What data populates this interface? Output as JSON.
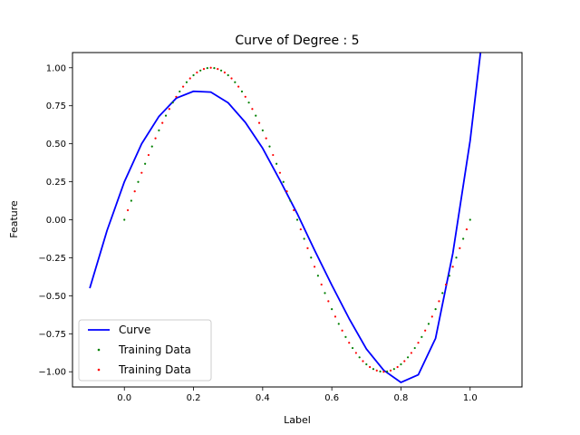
{
  "chart_data": {
    "type": "line",
    "title": "Curve of Degree : 5",
    "xlabel": "Label",
    "ylabel": "Feature",
    "xlim": [
      -0.15,
      1.15
    ],
    "ylim": [
      -1.1,
      1.1
    ],
    "xticks": [
      0.0,
      0.2,
      0.4,
      0.6,
      0.8,
      1.0
    ],
    "xtick_labels": [
      "0.0",
      "0.2",
      "0.4",
      "0.6",
      "0.8",
      "1.0"
    ],
    "yticks": [
      1.0,
      0.75,
      0.5,
      0.25,
      0.0,
      -0.25,
      -0.5,
      -0.75,
      -1.0
    ],
    "ytick_labels": [
      "1.00",
      "0.75",
      "0.50",
      "0.25",
      "0.00",
      "−0.25",
      "−0.50",
      "−0.75",
      "−1.00"
    ],
    "grid": false,
    "legend_position": "lower-left",
    "series": [
      {
        "name": "Curve",
        "kind": "line",
        "color": "#0000ff",
        "x": [
          -0.1,
          -0.05,
          0.0,
          0.05,
          0.1,
          0.15,
          0.2,
          0.25,
          0.3,
          0.35,
          0.4,
          0.45,
          0.5,
          0.55,
          0.6,
          0.65,
          0.7,
          0.75,
          0.8,
          0.85,
          0.9,
          0.95,
          1.0,
          1.03
        ],
        "y": [
          -0.45,
          -0.07,
          0.25,
          0.5,
          0.68,
          0.8,
          0.845,
          0.84,
          0.77,
          0.64,
          0.47,
          0.26,
          0.04,
          -0.2,
          -0.43,
          -0.65,
          -0.85,
          -0.99,
          -1.07,
          -1.02,
          -0.78,
          -0.22,
          0.52,
          1.1
        ]
      },
      {
        "name": "Training Data",
        "kind": "scatter",
        "color": "#008000",
        "x": [
          0.0,
          0.02,
          0.04,
          0.06,
          0.08,
          0.1,
          0.12,
          0.14,
          0.16,
          0.18,
          0.2,
          0.22,
          0.24,
          0.26,
          0.28,
          0.3,
          0.32,
          0.34,
          0.36,
          0.38,
          0.4,
          0.42,
          0.44,
          0.46,
          0.48,
          0.5,
          0.52,
          0.54,
          0.56,
          0.58,
          0.6,
          0.62,
          0.64,
          0.66,
          0.68,
          0.7,
          0.72,
          0.74,
          0.76,
          0.78,
          0.8,
          0.82,
          0.84,
          0.86,
          0.88,
          0.9,
          0.92,
          0.94,
          0.96,
          0.98,
          1.0
        ],
        "y": [
          0.0,
          0.125,
          0.249,
          0.368,
          0.482,
          0.588,
          0.685,
          0.771,
          0.844,
          0.905,
          0.951,
          0.982,
          0.998,
          0.998,
          0.982,
          0.951,
          0.905,
          0.844,
          0.771,
          0.685,
          0.588,
          0.482,
          0.368,
          0.249,
          0.125,
          0.0,
          -0.125,
          -0.249,
          -0.368,
          -0.482,
          -0.588,
          -0.685,
          -0.771,
          -0.844,
          -0.905,
          -0.951,
          -0.982,
          -0.998,
          -0.998,
          -0.982,
          -0.951,
          -0.905,
          -0.844,
          -0.771,
          -0.685,
          -0.588,
          -0.482,
          -0.368,
          -0.249,
          -0.125,
          0.0
        ]
      },
      {
        "name": "Training Data",
        "kind": "scatter",
        "color": "#ff0000",
        "x": [
          0.01,
          0.03,
          0.05,
          0.07,
          0.09,
          0.11,
          0.13,
          0.15,
          0.17,
          0.19,
          0.21,
          0.23,
          0.25,
          0.27,
          0.29,
          0.31,
          0.33,
          0.35,
          0.37,
          0.39,
          0.41,
          0.43,
          0.45,
          0.47,
          0.49,
          0.51,
          0.53,
          0.55,
          0.57,
          0.59,
          0.61,
          0.63,
          0.65,
          0.67,
          0.69,
          0.71,
          0.73,
          0.75,
          0.77,
          0.79,
          0.81,
          0.83,
          0.85,
          0.87,
          0.89,
          0.91,
          0.93,
          0.95,
          0.97,
          0.99
        ],
        "y": [
          0.063,
          0.187,
          0.309,
          0.426,
          0.536,
          0.637,
          0.729,
          0.809,
          0.876,
          0.93,
          0.969,
          0.992,
          1.0,
          0.992,
          0.969,
          0.93,
          0.876,
          0.809,
          0.729,
          0.637,
          0.536,
          0.426,
          0.309,
          0.187,
          0.063,
          -0.063,
          -0.187,
          -0.309,
          -0.426,
          -0.536,
          -0.637,
          -0.729,
          -0.809,
          -0.876,
          -0.93,
          -0.969,
          -0.992,
          -1.0,
          -0.992,
          -0.969,
          -0.93,
          -0.876,
          -0.809,
          -0.729,
          -0.637,
          -0.536,
          -0.426,
          -0.309,
          -0.187,
          -0.063
        ]
      }
    ]
  }
}
